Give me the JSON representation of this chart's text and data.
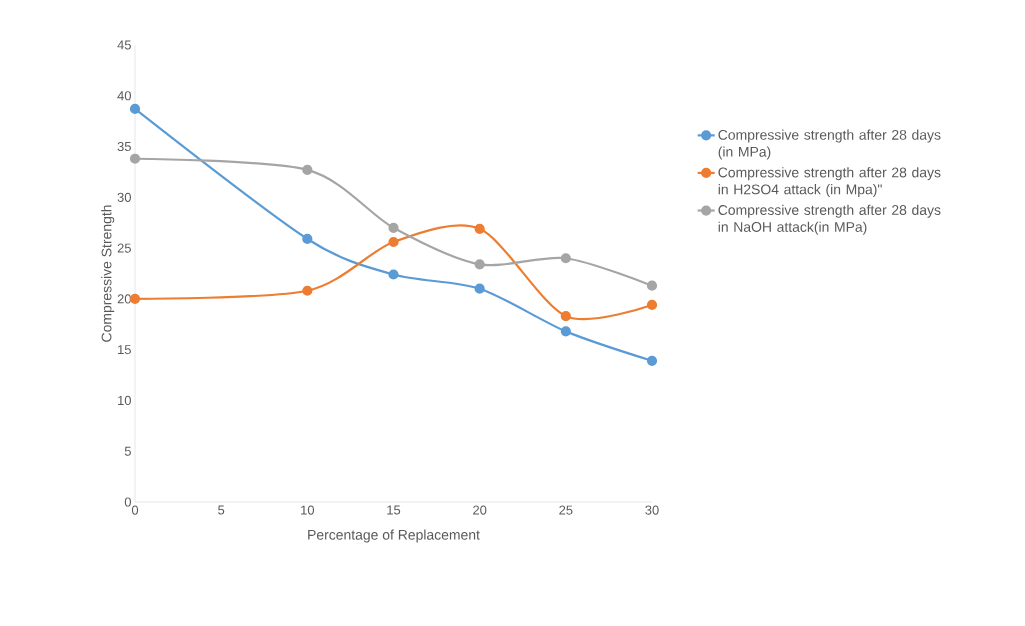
{
  "chart_data": {
    "type": "line",
    "xlabel": "Percentage of Replacement",
    "ylabel": "Compressive Strength",
    "x": [
      0,
      10,
      15,
      20,
      25,
      30
    ],
    "series": [
      {
        "name": "Compressive strength after  28 days (in MPa)",
        "color": "#5b9bd5",
        "values": [
          38.7,
          25.9,
          22.4,
          21.0,
          16.8,
          13.9
        ]
      },
      {
        "name": "Compressive strength after 28 days in H2SO4 attack (in Mpa)\"",
        "color": "#ed7d31",
        "values": [
          20.0,
          20.8,
          25.6,
          26.9,
          18.3,
          19.4
        ]
      },
      {
        "name": "Compressive strength after 28 days in NaOH attack(in MPa)",
        "color": "#a5a5a5",
        "values": [
          33.8,
          32.7,
          27.0,
          23.4,
          24.0,
          21.3
        ]
      }
    ],
    "xlim": [
      0,
      30
    ],
    "xticks": [
      0,
      5,
      10,
      15,
      20,
      25,
      30
    ],
    "ylim": [
      0,
      45
    ],
    "yticks": [
      0,
      5,
      10,
      15,
      20,
      25,
      30,
      35,
      40,
      45
    ],
    "grid": false,
    "legend": "right",
    "marker": "circle",
    "line_style": "solid"
  }
}
